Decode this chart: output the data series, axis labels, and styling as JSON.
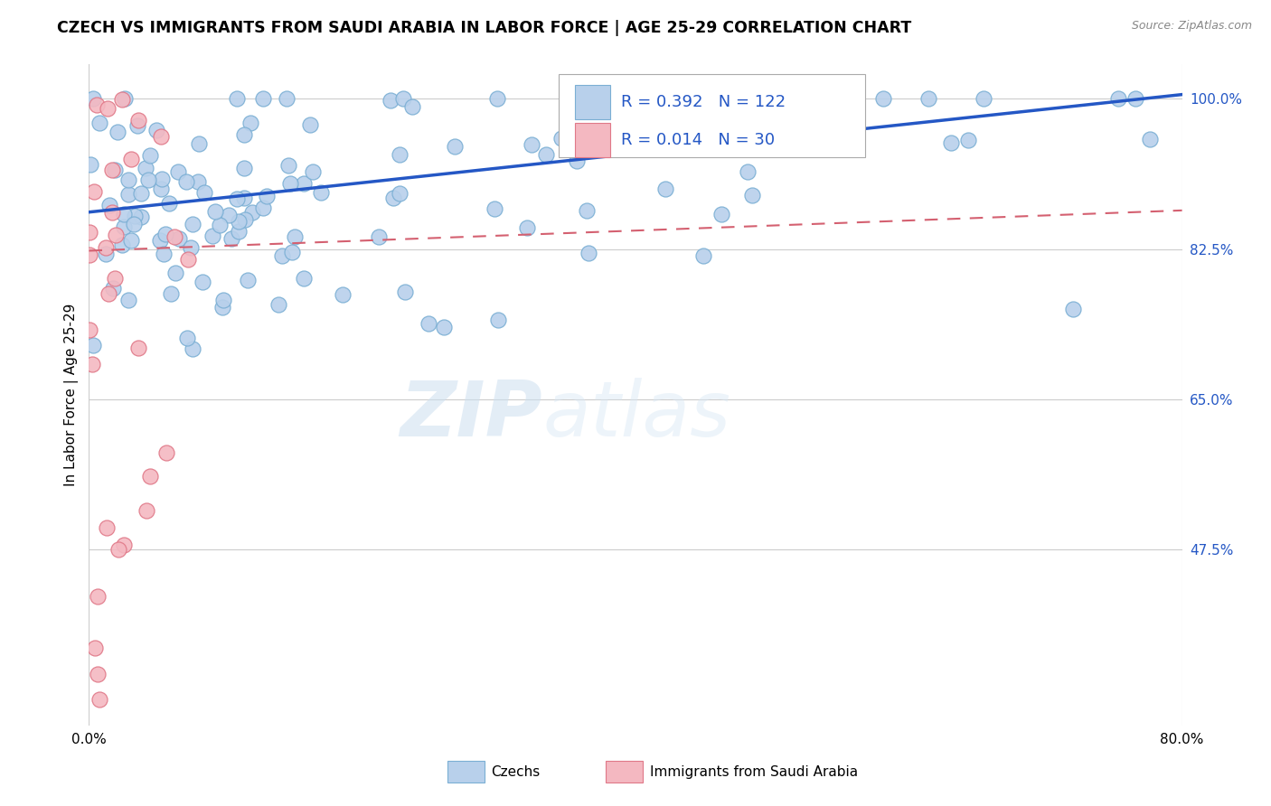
{
  "title": "CZECH VS IMMIGRANTS FROM SAUDI ARABIA IN LABOR FORCE | AGE 25-29 CORRELATION CHART",
  "source": "Source: ZipAtlas.com",
  "ylabel": "In Labor Force | Age 25-29",
  "y_tick_labels": [
    "100.0%",
    "82.5%",
    "65.0%",
    "47.5%"
  ],
  "y_tick_values": [
    1.0,
    0.825,
    0.65,
    0.475
  ],
  "x_min": 0.0,
  "x_max": 0.8,
  "y_min": 0.27,
  "y_max": 1.04,
  "legend_R_blue": "R = 0.392",
  "legend_N_blue": "N = 122",
  "legend_R_pink": "R = 0.014",
  "legend_N_pink": "N = 30",
  "legend_label_blue": "Czechs",
  "legend_label_pink": "Immigrants from Saudi Arabia",
  "dot_color_blue": "#b8d0eb",
  "dot_edge_blue": "#7bafd4",
  "dot_color_pink": "#f4b8c1",
  "dot_edge_pink": "#e07888",
  "trend_color_blue": "#2457c5",
  "trend_color_pink": "#d46070",
  "watermark_zip": "ZIP",
  "watermark_atlas": "atlas",
  "blue_trend_x0": 0.0,
  "blue_trend_x1": 0.8,
  "blue_trend_y0": 0.868,
  "blue_trend_y1": 1.005,
  "pink_trend_x0": 0.0,
  "pink_trend_x1": 0.8,
  "pink_trend_y0": 0.823,
  "pink_trend_y1": 0.87,
  "blue_seed": 42,
  "pink_seed": 99,
  "n_blue": 122,
  "n_pink": 30
}
